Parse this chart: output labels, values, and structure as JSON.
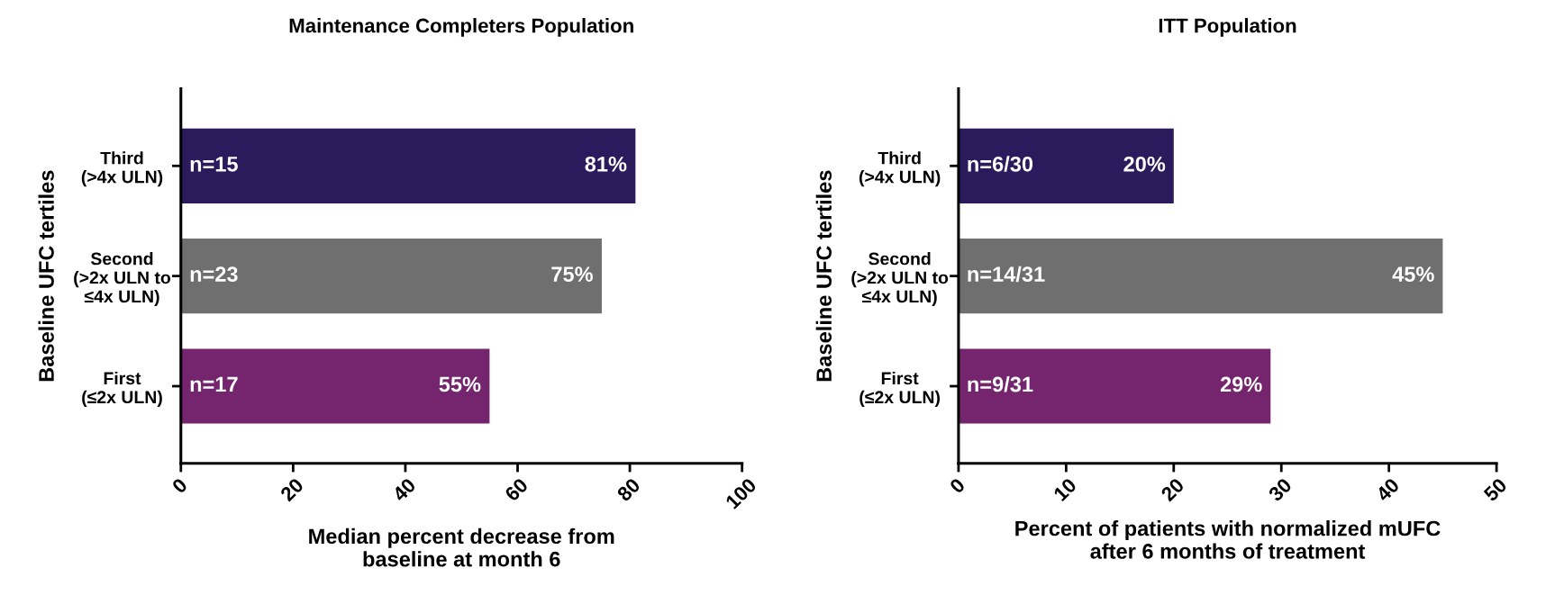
{
  "chart_data": [
    {
      "type": "bar",
      "orientation": "horizontal",
      "title": "Maintenance Completers Population",
      "xlabel": "Median percent decrease from\nbaseline at month 6",
      "ylabel": "Baseline UFC tertiles",
      "categories": [
        "Third\n(>4x ULN)",
        "Second\n(>2x ULN to\n≤4x ULN)",
        "First\n(≤2x ULN)"
      ],
      "values": [
        81,
        75,
        55
      ],
      "colors": [
        "#2b1b5c",
        "#6f6f70",
        "#74256d"
      ],
      "value_labels": [
        "81%",
        "75%",
        "55%"
      ],
      "xlim": [
        0,
        100
      ],
      "xticks": [
        0,
        20,
        40,
        60,
        80,
        100
      ],
      "grid": false,
      "annotations": [
        "n=15",
        "n=23",
        "n=17"
      ]
    },
    {
      "type": "bar",
      "orientation": "horizontal",
      "title": "ITT Population",
      "xlabel": "Percent of patients with normalized mUFC\nafter 6 months of treatment",
      "ylabel": "Baseline UFC tertiles",
      "categories": [
        "Third\n(>4x ULN)",
        "Second\n(>2x ULN to\n≤4x ULN)",
        "First\n(≤2x ULN)"
      ],
      "values": [
        20,
        45,
        29
      ],
      "colors": [
        "#2b1b5c",
        "#6f6f70",
        "#74256d"
      ],
      "value_labels": [
        "20%",
        "45%",
        "29%"
      ],
      "xlim": [
        0,
        50
      ],
      "xticks": [
        0,
        10,
        20,
        30,
        40,
        50
      ],
      "grid": false,
      "annotations": [
        "n=6/30",
        "n=14/31",
        "n=9/31"
      ]
    }
  ]
}
